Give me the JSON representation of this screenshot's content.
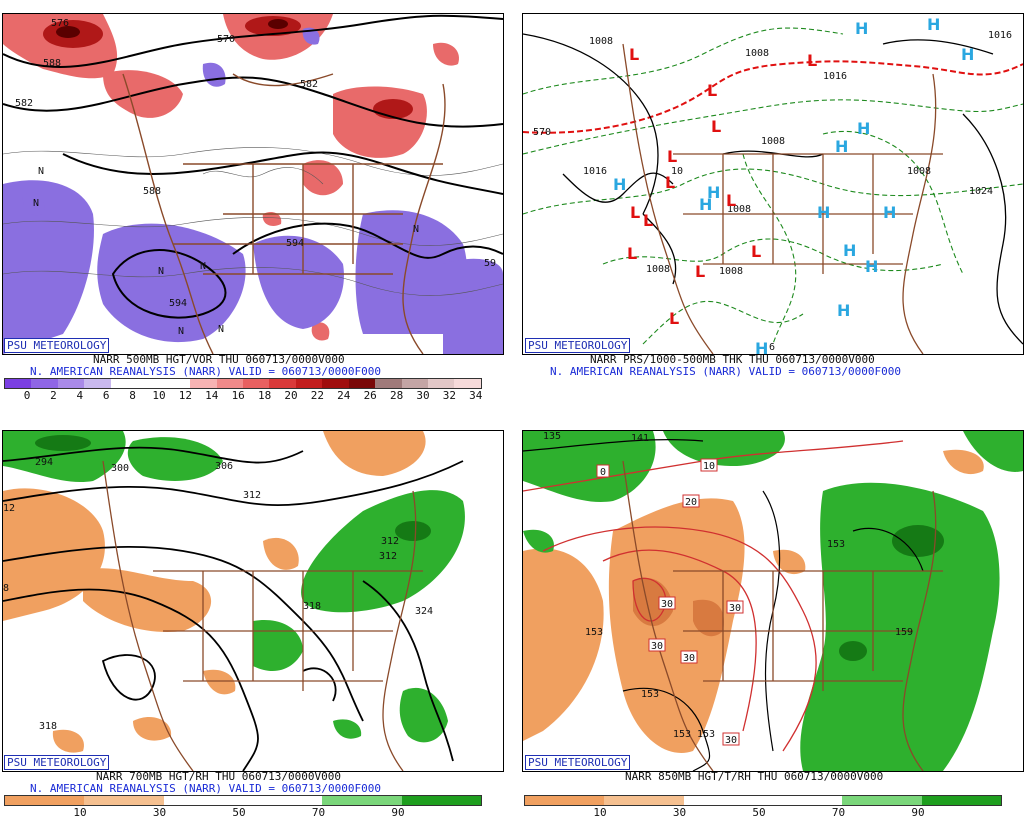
{
  "branding": "PSU METEOROLOGY",
  "panels": {
    "tl": {
      "caption1": "NARR 500MB HGT/VOR THU 060713/0000V000",
      "caption2": "N. AMERICAN REANALYSIS (NARR) VALID = 060713/0000F000",
      "colorbar_ticks": [
        "0",
        "2",
        "4",
        "6",
        "8",
        "10",
        "12",
        "14",
        "16",
        "18",
        "20",
        "22",
        "24",
        "26",
        "28",
        "30",
        "32",
        "34"
      ],
      "colorbar_colors": [
        "#7b3fe3",
        "#8f66e6",
        "#a98ae8",
        "#c9b9ef",
        "#ffffff",
        "#ffffff",
        "#ffffff",
        "#f7b3b3",
        "#f08a8a",
        "#e86060",
        "#d93a3a",
        "#c21d1d",
        "#a00d0d",
        "#7a0707",
        "#a07a7a",
        "#c4a5a5",
        "#e3c8c8",
        "#f6dada"
      ],
      "contour_labels": [
        "576",
        "588",
        "570",
        "582",
        "582",
        "588",
        "594",
        "59",
        "594",
        "N",
        "N",
        "N",
        "N",
        "N",
        "N",
        "N"
      ]
    },
    "tr": {
      "caption1": "NARR PRS/1000-500MB THK THU 060713/0000V000",
      "caption2": "N. AMERICAN REANALYSIS (NARR) VALID = 060713/0000F000",
      "contour_labels": [
        "1008",
        "1016",
        "1008",
        "570",
        "1016",
        "1008",
        "1008",
        "1024",
        "1008",
        "10",
        "1008",
        "1008",
        "1016",
        "6"
      ],
      "high_symbol": "H",
      "low_symbol": "L"
    },
    "bl": {
      "caption1": "NARR 700MB HGT/RH THU 060713/0000V000",
      "caption2": "N. AMERICAN REANALYSIS (NARR) VALID = 060713/0000F000",
      "colorbar_ticks": [
        "10",
        "30",
        "50",
        "70",
        "90"
      ],
      "colorbar_colors": [
        "#f0a060",
        "#f5c090",
        "#ffffff",
        "#ffffff",
        "#7ad67a",
        "#1e9e1e"
      ],
      "contour_labels": [
        "294",
        "300",
        "306",
        "312",
        "312",
        "312",
        "318",
        "324",
        "318",
        "12",
        "8"
      ]
    },
    "br": {
      "caption1": "NARR 850MB HGT/T/RH THU 060713/0000V000",
      "colorbar_ticks": [
        "10",
        "30",
        "50",
        "70",
        "90"
      ],
      "colorbar_colors": [
        "#f0a060",
        "#f5c090",
        "#ffffff",
        "#ffffff",
        "#7ad67a",
        "#1e9e1e"
      ],
      "contour_labels": [
        "135",
        "141",
        "153",
        "153",
        "153",
        "159",
        "153",
        "153"
      ],
      "temp_labels": [
        "0",
        "10",
        "20",
        "30",
        "30",
        "30",
        "30",
        "30",
        "30"
      ]
    }
  }
}
